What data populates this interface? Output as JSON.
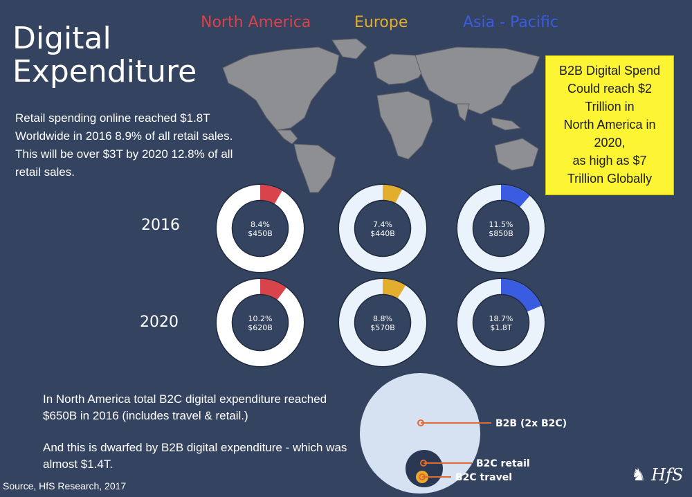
{
  "title_line1": "Digital",
  "title_line2": "Expenditure",
  "regions": [
    {
      "name": "North America",
      "color": "#d9434c"
    },
    {
      "name": "Europe",
      "color": "#e3ad2e"
    },
    {
      "name": "Asia - Pacific",
      "color": "#3a5ce0"
    }
  ],
  "intro_p1": "Retail spending online reached $1.8T Worldwide in 2016 8.9% of all retail sales.",
  "intro_p2": "This will be over $3T by 2020 12.8% of all retail sales.",
  "callout_lines": [
    "B2B Digital Spend",
    "Could reach $2",
    "Trillion in",
    "North America in",
    "2020,",
    "as high as $7",
    "Trillion Globally"
  ],
  "b2c_p1": "In North America total B2C digital expenditure reached $650B in 2016 (includes travel & retail.)",
  "b2c_p2": "And this is dwarfed by B2B digital expenditure -  which was almost $1.4T.",
  "source": "Source, HfS Research, 2017",
  "logo_text": "HfS",
  "chart_data": [
    {
      "type": "pie",
      "rows": [
        "2016",
        "2020"
      ],
      "columns": [
        "North America",
        "Europe",
        "Asia - Pacific"
      ],
      "cells": [
        {
          "year": "2016",
          "region": "North America",
          "percent": 8.4,
          "pct_label": "8.4%",
          "value_label": "$450B",
          "color": "#d9434c",
          "ring_bg": "#ffffff"
        },
        {
          "year": "2016",
          "region": "Europe",
          "percent": 7.4,
          "pct_label": "7.4%",
          "value_label": "$440B",
          "color": "#e3ad2e",
          "ring_bg": "#eaf3fb"
        },
        {
          "year": "2016",
          "region": "Asia - Pacific",
          "percent": 11.5,
          "pct_label": "11.5%",
          "value_label": "$850B",
          "color": "#3a5ce0",
          "ring_bg": "#eaf3fb"
        },
        {
          "year": "2020",
          "region": "North America",
          "percent": 10.2,
          "pct_label": "10.2%",
          "value_label": "$620B",
          "color": "#d9434c",
          "ring_bg": "#ffffff"
        },
        {
          "year": "2020",
          "region": "Europe",
          "percent": 8.8,
          "pct_label": "8.8%",
          "value_label": "$570B",
          "color": "#e3ad2e",
          "ring_bg": "#eaf3fb"
        },
        {
          "year": "2020",
          "region": "Asia - Pacific",
          "percent": 18.7,
          "pct_label": "18.7%",
          "value_label": "$1.8T",
          "color": "#3a5ce0",
          "ring_bg": "#eaf3fb"
        }
      ]
    },
    {
      "type": "nested-circles",
      "items": [
        {
          "label": "B2B (2x B2C)",
          "fill": "#d6e2f1"
        },
        {
          "label": "B2C retail",
          "fill": "#2b3853"
        },
        {
          "label": "B2C travel",
          "fill": "#e8ac2c"
        }
      ],
      "leader_color": "#e26a2c"
    }
  ]
}
